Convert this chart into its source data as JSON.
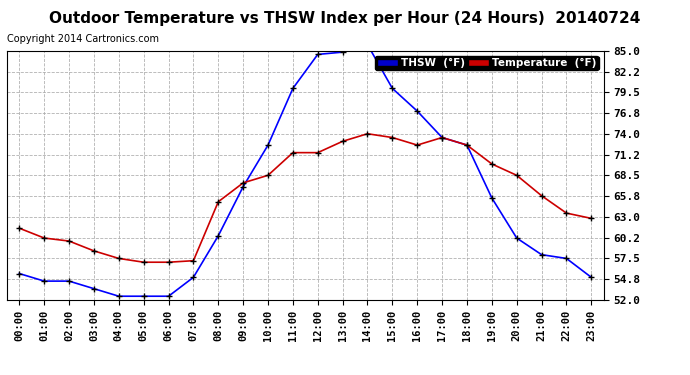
{
  "title": "Outdoor Temperature vs THSW Index per Hour (24 Hours)  20140724",
  "copyright": "Copyright 2014 Cartronics.com",
  "hours": [
    "00:00",
    "01:00",
    "02:00",
    "03:00",
    "04:00",
    "05:00",
    "06:00",
    "07:00",
    "08:00",
    "09:00",
    "10:00",
    "11:00",
    "12:00",
    "13:00",
    "14:00",
    "15:00",
    "16:00",
    "17:00",
    "18:00",
    "19:00",
    "20:00",
    "21:00",
    "22:00",
    "23:00"
  ],
  "thsw": [
    55.5,
    54.5,
    54.5,
    53.5,
    52.5,
    52.5,
    52.5,
    55.0,
    60.5,
    67.0,
    72.5,
    80.0,
    84.5,
    84.8,
    85.8,
    80.0,
    77.0,
    73.5,
    72.5,
    65.5,
    60.2,
    58.0,
    57.5,
    55.0
  ],
  "temp": [
    61.5,
    60.2,
    59.8,
    58.5,
    57.5,
    57.0,
    57.0,
    57.2,
    65.0,
    67.5,
    68.5,
    71.5,
    71.5,
    73.0,
    74.0,
    73.5,
    72.5,
    73.5,
    72.5,
    70.0,
    68.5,
    65.8,
    63.5,
    62.8
  ],
  "ylim": [
    52.0,
    85.0
  ],
  "yticks": [
    52.0,
    54.8,
    57.5,
    60.2,
    63.0,
    65.8,
    68.5,
    71.2,
    74.0,
    76.8,
    79.5,
    82.2,
    85.0
  ],
  "thsw_color": "#0000ff",
  "temp_color": "#cc0000",
  "bg_color": "#ffffff",
  "grid_color": "#aaaaaa",
  "title_fontsize": 11,
  "copyright_fontsize": 7,
  "legend_thsw_bg": "#0000cc",
  "legend_temp_bg": "#cc0000",
  "tick_fontsize": 7.5,
  "ytick_fontsize": 8
}
